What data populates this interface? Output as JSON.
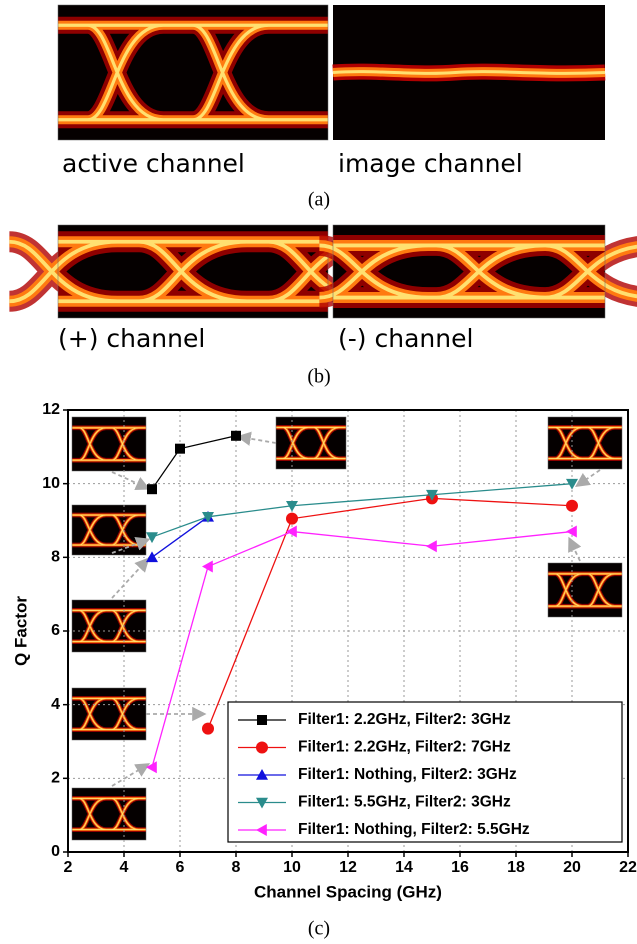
{
  "panel_a": {
    "labels": [
      "active channel",
      "image channel"
    ],
    "caption": "(a)"
  },
  "panel_b": {
    "labels": [
      "(+) channel",
      "(-) channel"
    ],
    "caption": "(b)"
  },
  "chart_data": {
    "type": "line",
    "x_label": "Channel Spacing (GHz)",
    "y_label": "Q Factor",
    "xlim": [
      2,
      22
    ],
    "xticks": [
      2,
      4,
      6,
      8,
      10,
      12,
      14,
      16,
      18,
      20,
      22
    ],
    "ylim": [
      0,
      12
    ],
    "yticks": [
      0,
      2,
      4,
      6,
      8,
      10,
      12
    ],
    "grid": true,
    "legend": "lower right",
    "series": [
      {
        "name": "Filter1: 2.2GHz, Filter2: 3GHz",
        "color": "#000000",
        "marker": "square",
        "x": [
          5,
          6,
          8
        ],
        "values": [
          9.85,
          10.95,
          11.3
        ]
      },
      {
        "name": "Filter1: 2.2GHz, Filter2: 7GHz",
        "color": "#ee1111",
        "marker": "circle",
        "x": [
          7,
          10,
          15,
          20
        ],
        "values": [
          3.35,
          9.05,
          9.6,
          9.4
        ]
      },
      {
        "name": "Filter1: Nothing, Filter2: 3GHz",
        "color": "#1010dd",
        "marker": "triangle-up",
        "x": [
          5,
          7
        ],
        "values": [
          8.0,
          9.1
        ]
      },
      {
        "name": "Filter1: 5.5GHz, Filter2: 3GHz",
        "color": "#2a8c8c",
        "marker": "triangle-down",
        "x": [
          5,
          7,
          10,
          15,
          20
        ],
        "values": [
          8.55,
          9.1,
          9.4,
          9.7,
          10.0
        ]
      },
      {
        "name": "Filter1: Nothing, Filter2: 5.5GHz",
        "color": "#ff22ff",
        "marker": "triangle-left",
        "x": [
          5,
          7,
          10,
          15,
          20
        ],
        "values": [
          2.3,
          7.75,
          8.7,
          8.3,
          8.7
        ]
      }
    ]
  },
  "caption_c": "(c)"
}
